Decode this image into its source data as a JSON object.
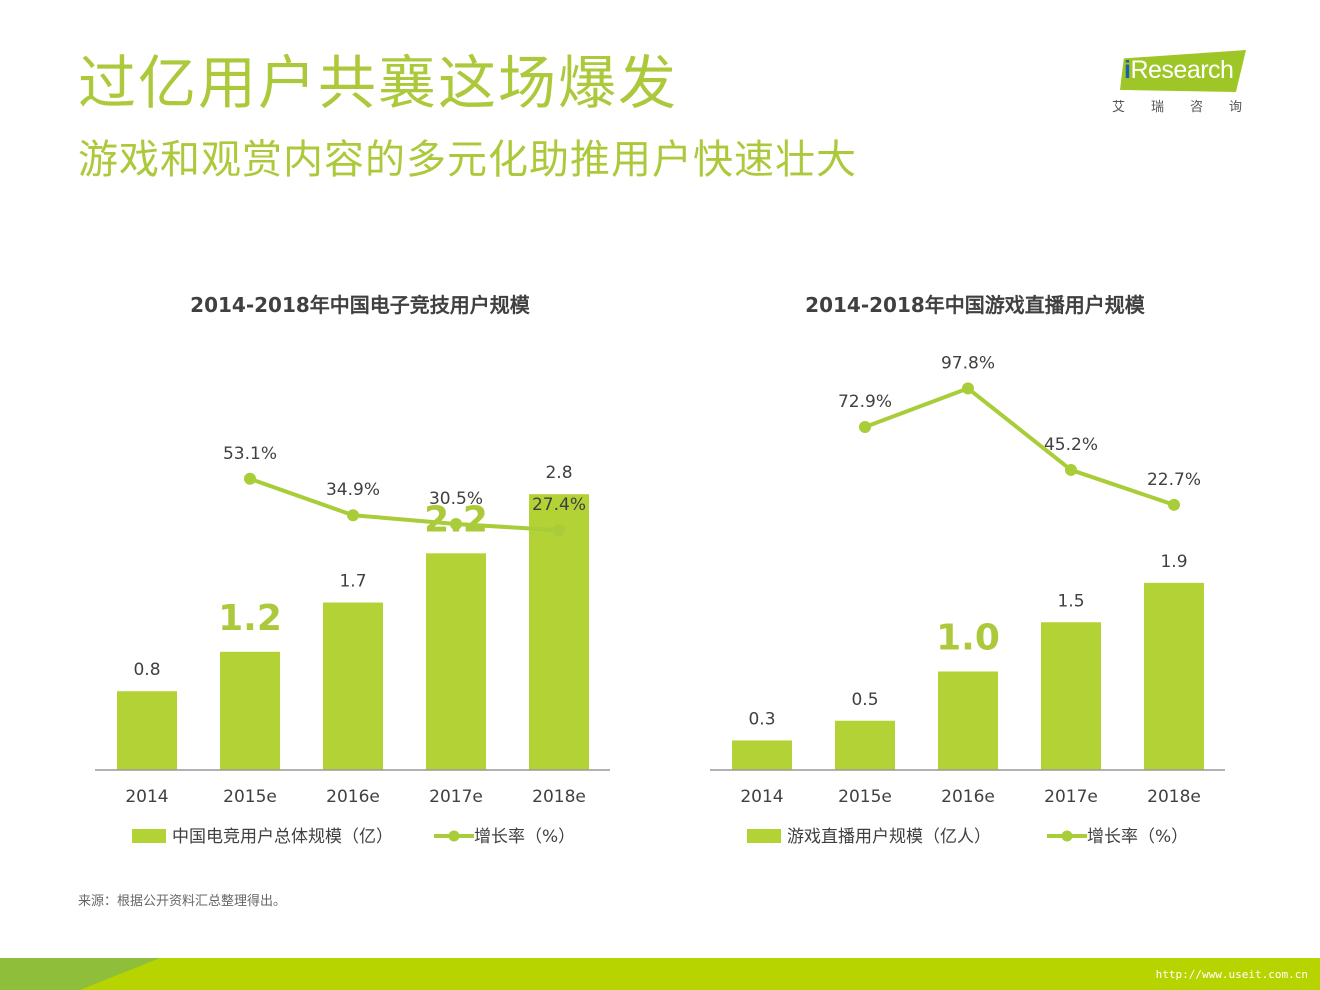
{
  "header": {
    "title": "过亿用户共襄这场爆发",
    "subtitle": "游戏和观赏内容的多元化助推用户快速壮大"
  },
  "logo": {
    "i": "i",
    "brand": "Research",
    "cn": "艾瑞咨询"
  },
  "colors": {
    "accent": "#acc93b",
    "bar": "#b2d235",
    "line": "#a9cc39",
    "text": "#404040"
  },
  "chart_data": [
    {
      "type": "bar",
      "title": "2014-2018年中国电子竞技用户规模",
      "categories": [
        "2014",
        "2015e",
        "2016e",
        "2017e",
        "2018e"
      ],
      "series": [
        {
          "name": "中国电竞用户总体规模（亿）",
          "values": [
            0.8,
            1.2,
            1.7,
            2.2,
            2.8
          ],
          "labels": [
            "0.8",
            "1.2",
            "1.7",
            "2.2",
            "2.8"
          ]
        },
        {
          "name": "增长率（%）",
          "type": "line",
          "values": [
            null,
            53.1,
            34.9,
            30.5,
            27.4
          ],
          "labels": [
            "",
            "53.1%",
            "34.9%",
            "30.5%",
            "27.4%"
          ]
        }
      ],
      "highlight": [
        1,
        3
      ],
      "ylim": [
        0,
        2.8
      ]
    },
    {
      "type": "bar",
      "title": "2014-2018年中国游戏直播用户规模",
      "categories": [
        "2014",
        "2015e",
        "2016e",
        "2017e",
        "2018e"
      ],
      "series": [
        {
          "name": "游戏直播用户规模（亿人）",
          "values": [
            0.3,
            0.5,
            1.0,
            1.5,
            1.9
          ],
          "labels": [
            "0.3",
            "0.5",
            "1.0",
            "1.5",
            "1.9"
          ]
        },
        {
          "name": "增长率（%）",
          "type": "line",
          "values": [
            null,
            72.9,
            97.8,
            45.2,
            22.7
          ],
          "labels": [
            "",
            "72.9%",
            "97.8%",
            "45.2%",
            "22.7%"
          ]
        }
      ],
      "highlight": [
        2
      ],
      "ylim": [
        0,
        2.8
      ]
    }
  ],
  "source": "来源：根据公开资料汇总整理得出。",
  "footer": {
    "url": "http://www.useit.com.cn"
  }
}
